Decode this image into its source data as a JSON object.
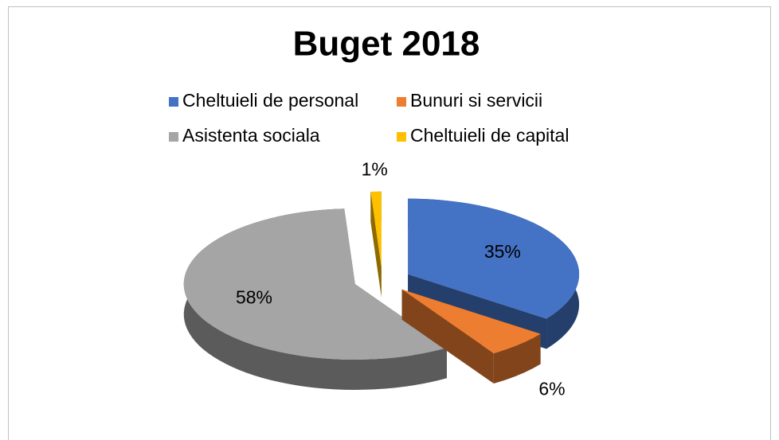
{
  "chart_data": {
    "type": "pie",
    "title": "Buget 2018",
    "categories": [
      "Cheltuieli de personal",
      "Bunuri si servicii",
      "Asistenta sociala",
      "Cheltuieli de capital"
    ],
    "values": [
      35,
      6,
      58,
      1
    ],
    "value_labels": [
      "35%",
      "6%",
      "58%",
      "1%"
    ],
    "colors": [
      "#4472c4",
      "#ed7d31",
      "#a5a5a5",
      "#ffc000"
    ],
    "legend": "top"
  }
}
